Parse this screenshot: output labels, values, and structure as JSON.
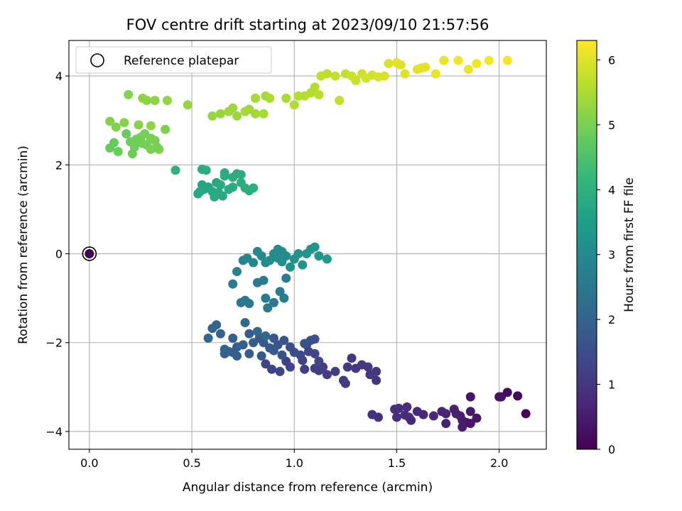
{
  "chart_data": {
    "type": "scatter",
    "title": "FOV centre drift starting at 2023/09/10 21:57:56",
    "xlabel": "Angular distance from reference (arcmin)",
    "ylabel": "Rotation from reference (arcmin)",
    "xlim": [
      -0.1,
      2.23
    ],
    "ylim": [
      -4.4,
      4.8
    ],
    "xticks": [
      0.0,
      0.5,
      1.0,
      1.5,
      2.0
    ],
    "xtick_labels": [
      "0.0",
      "0.5",
      "1.0",
      "1.5",
      "2.0"
    ],
    "yticks": [
      -4,
      -2,
      0,
      2,
      4
    ],
    "ytick_labels": [
      "−4",
      "−2",
      "0",
      "2",
      "4"
    ],
    "grid": true,
    "legend": {
      "position": "top-left",
      "entries": [
        "Reference platepar"
      ]
    },
    "colorbar": {
      "label": "Hours from first FF file",
      "colormap": "viridis",
      "range": [
        0,
        6.3
      ],
      "ticks": [
        0,
        1,
        2,
        3,
        4,
        5,
        6
      ],
      "tick_labels": [
        "0",
        "1",
        "2",
        "3",
        "4",
        "5",
        "6"
      ],
      "stops": [
        "#440154",
        "#482878",
        "#3e4989",
        "#31688e",
        "#26828e",
        "#1f9e89",
        "#35b779",
        "#6ece58",
        "#b5de2b",
        "#fde725"
      ]
    },
    "reference_point": {
      "x": 0.0,
      "y": 0.0,
      "color": "#440154",
      "marker": "open circle"
    },
    "series": [
      {
        "points": [
          [
            1.38,
            -3.62,
            0.9
          ],
          [
            1.41,
            -3.68,
            0.9
          ],
          [
            1.49,
            -3.5,
            0.85
          ],
          [
            1.51,
            -3.48,
            0.85
          ],
          [
            1.5,
            -3.68,
            0.85
          ],
          [
            1.54,
            -3.63,
            0.8
          ],
          [
            1.55,
            -3.45,
            0.8
          ],
          [
            1.56,
            -3.68,
            0.8
          ],
          [
            1.57,
            -3.75,
            0.75
          ],
          [
            1.6,
            -3.55,
            0.75
          ],
          [
            1.63,
            -3.62,
            0.7
          ],
          [
            1.68,
            -3.65,
            0.7
          ],
          [
            1.72,
            -3.55,
            0.65
          ],
          [
            1.74,
            -3.6,
            0.65
          ],
          [
            1.74,
            -3.82,
            0.6
          ],
          [
            1.78,
            -3.5,
            0.6
          ],
          [
            1.79,
            -3.6,
            0.55
          ],
          [
            1.81,
            -3.65,
            0.55
          ],
          [
            1.82,
            -3.75,
            0.5
          ],
          [
            1.82,
            -3.9,
            0.5
          ],
          [
            1.84,
            -3.8,
            0.45
          ],
          [
            1.86,
            -3.55,
            0.45
          ],
          [
            1.86,
            -3.82,
            0.4
          ],
          [
            1.89,
            -3.7,
            0.4
          ],
          [
            1.86,
            -3.22,
            0.35
          ],
          [
            2.0,
            -3.22,
            0.3
          ],
          [
            2.01,
            -3.22,
            0.3
          ],
          [
            2.04,
            -3.12,
            0.2
          ],
          [
            2.09,
            -3.2,
            0.15
          ],
          [
            2.13,
            -3.6,
            0.1
          ],
          [
            1.16,
            -2.72,
            1.15
          ],
          [
            1.2,
            -2.65,
            1.15
          ],
          [
            1.24,
            -2.85,
            1.1
          ],
          [
            1.25,
            -2.92,
            1.1
          ],
          [
            1.26,
            -2.55,
            1.1
          ],
          [
            1.28,
            -2.35,
            1.05
          ],
          [
            1.3,
            -2.58,
            1.05
          ],
          [
            1.33,
            -2.5,
            1.05
          ],
          [
            1.36,
            -2.55,
            1.0
          ],
          [
            1.37,
            -2.72,
            1.0
          ],
          [
            1.4,
            -2.65,
            1.0
          ],
          [
            1.4,
            -2.85,
            0.95
          ],
          [
            1.05,
            -2.6,
            1.2
          ],
          [
            1.1,
            -2.58,
            1.2
          ],
          [
            1.12,
            -2.63,
            1.2
          ],
          [
            1.14,
            -2.55,
            1.2
          ],
          [
            0.93,
            -2.65,
            1.3
          ],
          [
            0.98,
            -2.55,
            1.3
          ],
          [
            0.89,
            -2.6,
            1.3
          ],
          [
            0.86,
            -2.48,
            1.3
          ],
          [
            0.96,
            -2.42,
            1.25
          ],
          [
            1.04,
            -2.4,
            1.25
          ],
          [
            1.07,
            -2.2,
            1.35
          ],
          [
            1.1,
            -2.25,
            1.35
          ],
          [
            1.12,
            -2.42,
            1.35
          ],
          [
            1.06,
            -2.05,
            1.4
          ],
          [
            1.03,
            -2.28,
            1.4
          ],
          [
            1.0,
            -2.22,
            1.5
          ],
          [
            0.98,
            -2.1,
            1.5
          ],
          [
            1.08,
            -1.95,
            1.55
          ],
          [
            1.1,
            -1.92,
            1.55
          ],
          [
            1.05,
            -2.02,
            1.6
          ],
          [
            0.95,
            -1.95,
            1.65
          ],
          [
            0.92,
            -2.05,
            1.7
          ],
          [
            0.9,
            -1.9,
            1.7
          ],
          [
            0.88,
            -2.12,
            1.75
          ],
          [
            0.85,
            -2.0,
            1.75
          ],
          [
            0.83,
            -1.9,
            1.8
          ],
          [
            0.8,
            -2.0,
            1.8
          ],
          [
            0.78,
            -1.8,
            1.85
          ],
          [
            0.75,
            -2.05,
            1.85
          ],
          [
            0.72,
            -2.1,
            1.9
          ],
          [
            0.7,
            -1.9,
            1.9
          ],
          [
            0.68,
            -2.2,
            1.95
          ],
          [
            0.66,
            -2.15,
            1.95
          ],
          [
            0.64,
            -1.8,
            2.0
          ],
          [
            0.62,
            -1.6,
            2.0
          ],
          [
            0.6,
            -1.68,
            2.05
          ],
          [
            0.58,
            -1.9,
            2.05
          ],
          [
            0.76,
            -1.55,
            2.1
          ],
          [
            0.82,
            -1.75,
            2.1
          ],
          [
            0.86,
            -1.85,
            2.1
          ],
          [
            0.9,
            -2.18,
            1.75
          ],
          [
            0.78,
            -2.25,
            1.85
          ],
          [
            0.84,
            -2.3,
            1.8
          ],
          [
            0.94,
            -2.28,
            1.6
          ],
          [
            0.72,
            -2.3,
            1.9
          ],
          [
            0.7,
            -2.22,
            1.9
          ],
          [
            0.66,
            -2.25,
            1.95
          ],
          [
            0.74,
            -1.1,
            2.5
          ],
          [
            0.76,
            -1.05,
            2.5
          ],
          [
            0.78,
            -1.12,
            2.5
          ],
          [
            0.82,
            -0.65,
            2.55
          ],
          [
            0.85,
            -0.6,
            2.6
          ],
          [
            0.86,
            -1.0,
            2.6
          ],
          [
            0.87,
            -1.22,
            2.6
          ],
          [
            0.9,
            -1.1,
            2.55
          ],
          [
            0.93,
            -0.85,
            2.65
          ],
          [
            0.95,
            -1.0,
            2.65
          ],
          [
            0.96,
            -0.55,
            2.7
          ],
          [
            0.7,
            -0.68,
            2.7
          ],
          [
            0.72,
            -0.4,
            2.8
          ],
          [
            0.75,
            -0.15,
            2.85
          ],
          [
            0.77,
            -0.1,
            2.9
          ],
          [
            0.8,
            -0.2,
            2.9
          ],
          [
            0.82,
            0.05,
            2.95
          ],
          [
            0.84,
            -0.05,
            3.0
          ],
          [
            0.86,
            -0.2,
            3.0
          ],
          [
            0.88,
            -0.15,
            3.05
          ],
          [
            0.9,
            0.0,
            3.05
          ],
          [
            0.92,
            -0.1,
            3.1
          ],
          [
            0.94,
            0.05,
            3.1
          ],
          [
            0.96,
            -0.05,
            3.1
          ],
          [
            1.0,
            -0.12,
            3.15
          ],
          [
            1.02,
            0.0,
            3.2
          ],
          [
            1.04,
            -0.25,
            3.2
          ],
          [
            1.06,
            0.0,
            3.25
          ],
          [
            1.08,
            0.1,
            3.25
          ],
          [
            1.1,
            0.15,
            3.3
          ],
          [
            1.12,
            -0.05,
            3.3
          ],
          [
            1.16,
            -0.12,
            3.35
          ],
          [
            0.98,
            -0.3,
            3.15
          ],
          [
            0.94,
            -0.18,
            3.1
          ],
          [
            0.92,
            0.1,
            3.05
          ],
          [
            0.55,
            1.55,
            3.7
          ],
          [
            0.56,
            1.45,
            3.7
          ],
          [
            0.58,
            1.5,
            3.7
          ],
          [
            0.6,
            1.4,
            3.75
          ],
          [
            0.62,
            1.6,
            3.75
          ],
          [
            0.64,
            1.55,
            3.8
          ],
          [
            0.65,
            1.3,
            3.8
          ],
          [
            0.66,
            1.75,
            3.85
          ],
          [
            0.68,
            1.45,
            3.85
          ],
          [
            0.7,
            1.5,
            3.85
          ],
          [
            0.72,
            1.8,
            3.9
          ],
          [
            0.74,
            1.6,
            3.9
          ],
          [
            0.76,
            1.48,
            3.95
          ],
          [
            0.78,
            1.42,
            3.95
          ],
          [
            0.8,
            1.48,
            3.95
          ],
          [
            0.55,
            1.9,
            3.9
          ],
          [
            0.57,
            1.88,
            3.9
          ],
          [
            0.53,
            1.35,
            3.75
          ],
          [
            0.54,
            1.4,
            3.75
          ],
          [
            0.61,
            1.28,
            3.8
          ],
          [
            0.63,
            1.38,
            3.8
          ],
          [
            0.66,
            1.82,
            3.85
          ],
          [
            0.7,
            1.72,
            3.9
          ],
          [
            0.42,
            1.88,
            4.0
          ],
          [
            0.74,
            1.78,
            3.9
          ],
          [
            0.1,
            2.38,
            4.8
          ],
          [
            0.12,
            2.5,
            4.8
          ],
          [
            0.14,
            2.3,
            4.85
          ],
          [
            0.18,
            2.7,
            4.85
          ],
          [
            0.2,
            2.52,
            4.9
          ],
          [
            0.22,
            2.4,
            4.9
          ],
          [
            0.24,
            2.55,
            4.9
          ],
          [
            0.25,
            2.62,
            4.95
          ],
          [
            0.26,
            2.48,
            4.95
          ],
          [
            0.28,
            2.45,
            4.95
          ],
          [
            0.3,
            2.6,
            5.0
          ],
          [
            0.3,
            2.35,
            5.0
          ],
          [
            0.32,
            2.55,
            5.0
          ],
          [
            0.34,
            2.35,
            5.05
          ],
          [
            0.37,
            2.8,
            5.05
          ],
          [
            0.1,
            2.98,
            5.1
          ],
          [
            0.13,
            2.85,
            5.1
          ],
          [
            0.17,
            2.95,
            5.1
          ],
          [
            0.19,
            3.58,
            5.15
          ],
          [
            0.24,
            2.9,
            5.15
          ],
          [
            0.26,
            3.5,
            5.2
          ],
          [
            0.28,
            3.45,
            5.2
          ],
          [
            0.3,
            2.88,
            5.2
          ],
          [
            0.32,
            3.45,
            5.2
          ],
          [
            0.38,
            3.45,
            5.25
          ],
          [
            0.48,
            3.35,
            5.25
          ],
          [
            0.21,
            2.25,
            4.85
          ],
          [
            0.23,
            2.58,
            4.9
          ],
          [
            0.27,
            2.7,
            4.95
          ],
          [
            0.33,
            2.4,
            5.0
          ],
          [
            0.6,
            3.1,
            5.3
          ],
          [
            0.64,
            3.15,
            5.3
          ],
          [
            0.68,
            3.2,
            5.35
          ],
          [
            0.7,
            3.28,
            5.35
          ],
          [
            0.72,
            3.1,
            5.35
          ],
          [
            0.76,
            3.2,
            5.4
          ],
          [
            0.78,
            3.25,
            5.4
          ],
          [
            0.81,
            3.15,
            5.4
          ],
          [
            0.85,
            3.15,
            5.45
          ],
          [
            0.81,
            3.5,
            5.45
          ],
          [
            0.86,
            3.55,
            5.45
          ],
          [
            0.88,
            3.5,
            5.5
          ],
          [
            0.96,
            3.5,
            5.5
          ],
          [
            1.0,
            3.35,
            5.55
          ],
          [
            1.02,
            3.55,
            5.55
          ],
          [
            1.05,
            3.55,
            5.6
          ],
          [
            1.08,
            3.62,
            5.6
          ],
          [
            1.1,
            3.75,
            5.6
          ],
          [
            1.12,
            3.58,
            5.65
          ],
          [
            1.13,
            4.0,
            5.7
          ],
          [
            1.16,
            4.05,
            5.7
          ],
          [
            1.22,
            3.45,
            5.75
          ],
          [
            1.25,
            4.05,
            5.75
          ],
          [
            1.2,
            4.0,
            5.75
          ],
          [
            1.28,
            4.0,
            5.8
          ],
          [
            1.3,
            3.9,
            5.8
          ],
          [
            1.33,
            4.05,
            5.85
          ],
          [
            1.35,
            3.95,
            5.85
          ],
          [
            1.38,
            4.02,
            5.85
          ],
          [
            1.41,
            3.98,
            5.9
          ],
          [
            1.44,
            4.0,
            5.9
          ],
          [
            1.46,
            4.28,
            5.95
          ],
          [
            1.5,
            4.3,
            6.0
          ],
          [
            1.52,
            4.25,
            6.0
          ],
          [
            1.54,
            4.05,
            6.0
          ],
          [
            1.6,
            4.15,
            6.05
          ],
          [
            1.62,
            4.18,
            6.05
          ],
          [
            1.64,
            4.2,
            6.05
          ],
          [
            1.69,
            4.05,
            6.1
          ],
          [
            1.73,
            4.35,
            6.1
          ],
          [
            1.8,
            4.35,
            6.15
          ],
          [
            1.85,
            4.15,
            6.15
          ],
          [
            1.89,
            4.28,
            6.2
          ],
          [
            1.95,
            4.35,
            6.2
          ],
          [
            2.04,
            4.35,
            6.25
          ]
        ]
      }
    ]
  }
}
